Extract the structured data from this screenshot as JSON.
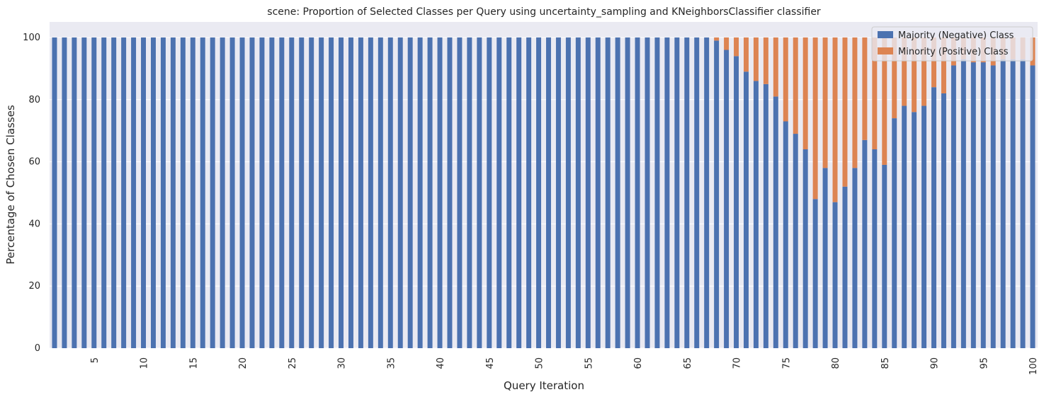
{
  "chart_data": {
    "type": "bar",
    "stacked": true,
    "title": "scene: Proportion of Selected Classes per Query using uncertainty_sampling and KNeighborsClassifier classifier",
    "xlabel": "Query Iteration",
    "ylabel": "Percentage of Chosen Classes",
    "ylim": [
      0,
      105
    ],
    "yticks": [
      0,
      20,
      40,
      60,
      80,
      100
    ],
    "xtick_labels": [
      "5",
      "10",
      "15",
      "20",
      "25",
      "30",
      "35",
      "40",
      "45",
      "50",
      "55",
      "60",
      "65",
      "70",
      "75",
      "80",
      "85",
      "90",
      "95",
      "100"
    ],
    "x": [
      1,
      2,
      3,
      4,
      5,
      6,
      7,
      8,
      9,
      10,
      11,
      12,
      13,
      14,
      15,
      16,
      17,
      18,
      19,
      20,
      21,
      22,
      23,
      24,
      25,
      26,
      27,
      28,
      29,
      30,
      31,
      32,
      33,
      34,
      35,
      36,
      37,
      38,
      39,
      40,
      41,
      42,
      43,
      44,
      45,
      46,
      47,
      48,
      49,
      50,
      51,
      52,
      53,
      54,
      55,
      56,
      57,
      58,
      59,
      60,
      61,
      62,
      63,
      64,
      65,
      66,
      67,
      68,
      69,
      70,
      71,
      72,
      73,
      74,
      75,
      76,
      77,
      78,
      79,
      80,
      81,
      82,
      83,
      84,
      85,
      86,
      87,
      88,
      89,
      90,
      91,
      92,
      93,
      94,
      95,
      96,
      97,
      98,
      99,
      100
    ],
    "series": [
      {
        "name": "Majority (Negative) Class",
        "color": "#4c72b0",
        "values": [
          100,
          100,
          100,
          100,
          100,
          100,
          100,
          100,
          100,
          100,
          100,
          100,
          100,
          100,
          100,
          100,
          100,
          100,
          100,
          100,
          100,
          100,
          100,
          100,
          100,
          100,
          100,
          100,
          100,
          100,
          100,
          100,
          100,
          100,
          100,
          100,
          100,
          100,
          100,
          100,
          100,
          100,
          100,
          100,
          100,
          100,
          100,
          100,
          100,
          100,
          100,
          100,
          100,
          100,
          100,
          100,
          100,
          100,
          100,
          100,
          100,
          100,
          100,
          100,
          100,
          100,
          100,
          99,
          96,
          94,
          89,
          86,
          85,
          81,
          73,
          69,
          64,
          48,
          58,
          47,
          52,
          58,
          67,
          64,
          59,
          74,
          78,
          76,
          78,
          84,
          82,
          91,
          93,
          92,
          92,
          91,
          93,
          93,
          93,
          91
        ]
      },
      {
        "name": "Minority (Positive) Class",
        "color": "#dd8452",
        "values": [
          0,
          0,
          0,
          0,
          0,
          0,
          0,
          0,
          0,
          0,
          0,
          0,
          0,
          0,
          0,
          0,
          0,
          0,
          0,
          0,
          0,
          0,
          0,
          0,
          0,
          0,
          0,
          0,
          0,
          0,
          0,
          0,
          0,
          0,
          0,
          0,
          0,
          0,
          0,
          0,
          0,
          0,
          0,
          0,
          0,
          0,
          0,
          0,
          0,
          0,
          0,
          0,
          0,
          0,
          0,
          0,
          0,
          0,
          0,
          0,
          0,
          0,
          0,
          0,
          0,
          0,
          0,
          1,
          4,
          6,
          11,
          14,
          15,
          19,
          27,
          31,
          36,
          52,
          42,
          53,
          48,
          42,
          33,
          36,
          41,
          26,
          22,
          24,
          22,
          16,
          18,
          9,
          7,
          8,
          8,
          9,
          7,
          7,
          7,
          9
        ]
      }
    ],
    "grid": true,
    "legend": "top-right"
  }
}
